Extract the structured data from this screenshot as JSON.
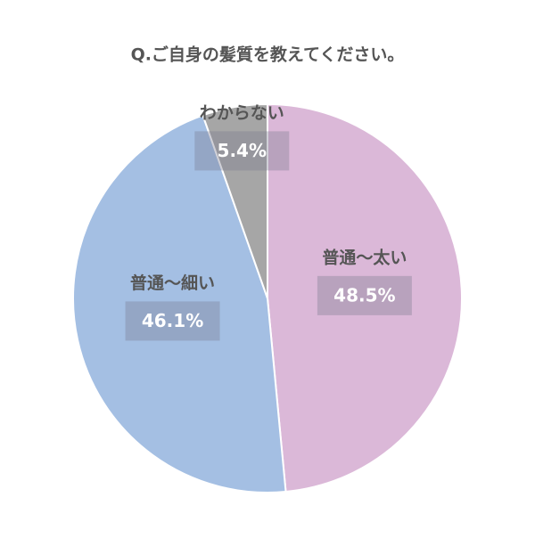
{
  "chart_data": {
    "type": "pie",
    "title": "Q.ご自身の髪質を教えてください。",
    "categories": [
      "普通〜太い",
      "普通〜細い",
      "わからない"
    ],
    "values": [
      48.5,
      46.1,
      5.4
    ],
    "value_labels": [
      "48.5%",
      "46.1%",
      "5.4%"
    ],
    "colors": [
      "#dbb8d8",
      "#a4bfe3",
      "#a6a6a6"
    ]
  }
}
